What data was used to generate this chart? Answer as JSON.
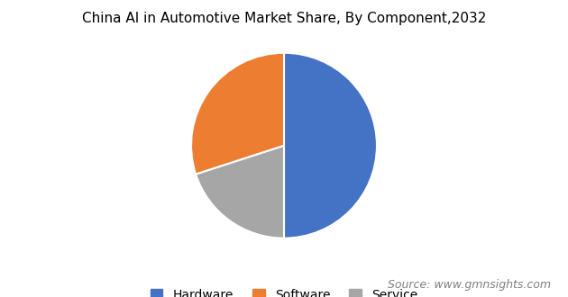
{
  "title": "China AI in Automotive Market Share, By Component,2032",
  "slices": [
    50,
    20,
    30
  ],
  "labels": [
    "Hardware",
    "Service",
    "Software"
  ],
  "legend_labels": [
    "Hardware",
    "Software",
    "Service"
  ],
  "colors": [
    "#4472c4",
    "#a6a6a6",
    "#ed7d31"
  ],
  "legend_colors": [
    "#4472c4",
    "#ed7d31",
    "#a6a6a6"
  ],
  "startangle": 90,
  "source_text": "Source: www.gmnsights.com",
  "title_fontsize": 11,
  "legend_fontsize": 10,
  "source_fontsize": 9
}
